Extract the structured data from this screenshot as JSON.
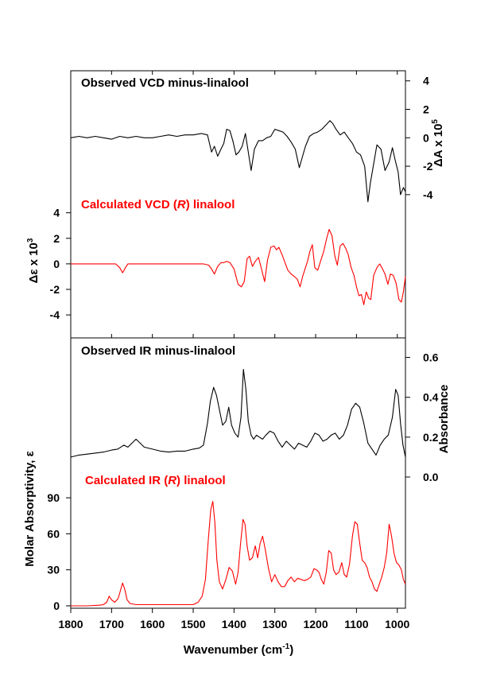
{
  "chart_data": [
    {
      "type": "line",
      "panel": "observed-vcd",
      "title": "Observed VCD minus-linalool",
      "title_color": "#000000",
      "line_color": "#000000",
      "ylabel": "ΔA x 10",
      "ylabel_sup": "5",
      "yaxis_side": "right",
      "ylim": [
        -4.4,
        4.6
      ],
      "yticks": [
        4,
        2,
        0,
        -2,
        -4
      ],
      "x": [
        1800,
        1780,
        1760,
        1740,
        1720,
        1700,
        1680,
        1660,
        1640,
        1620,
        1600,
        1580,
        1560,
        1540,
        1520,
        1500,
        1480,
        1465,
        1455,
        1448,
        1440,
        1432,
        1425,
        1418,
        1410,
        1402,
        1395,
        1388,
        1380,
        1372,
        1365,
        1358,
        1350,
        1340,
        1330,
        1320,
        1310,
        1300,
        1290,
        1280,
        1270,
        1260,
        1250,
        1240,
        1232,
        1225,
        1215,
        1205,
        1195,
        1185,
        1175,
        1165,
        1158,
        1150,
        1140,
        1130,
        1120,
        1110,
        1100,
        1090,
        1080,
        1072,
        1066,
        1060,
        1050,
        1040,
        1030,
        1020,
        1012,
        1005,
        998,
        992,
        985,
        980
      ],
      "values": [
        0.0,
        0.1,
        0.0,
        0.1,
        0.0,
        -0.1,
        0.1,
        0.0,
        0.1,
        0.0,
        0.0,
        0.1,
        0.2,
        0.1,
        0.2,
        0.2,
        0.3,
        0.2,
        -1.0,
        -0.6,
        -1.3,
        -0.8,
        -0.4,
        0.6,
        0.5,
        -0.3,
        -1.2,
        -1.0,
        -0.6,
        0.3,
        -1.0,
        -2.3,
        -0.8,
        -0.2,
        -0.2,
        0.0,
        0.1,
        0.6,
        0.5,
        0.4,
        0.1,
        -0.3,
        -0.8,
        -2.1,
        -1.3,
        -0.6,
        0.1,
        0.3,
        0.4,
        0.6,
        0.9,
        1.2,
        1.0,
        0.6,
        0.2,
        0.4,
        0.0,
        -0.4,
        -1.0,
        -1.2,
        -2.0,
        -4.5,
        -3.2,
        -2.2,
        -0.5,
        -0.8,
        -2.3,
        -1.7,
        -0.7,
        -1.6,
        -2.4,
        -4.0,
        -3.5,
        -3.8
      ]
    },
    {
      "type": "line",
      "panel": "calculated-vcd",
      "title": "Calculated VCD (",
      "title_italic": "R",
      "title_end": ") linalool",
      "title_color": "#ff0000",
      "line_color": "#ff0000",
      "ylabel": "Δε x 10",
      "ylabel_sup": "3",
      "yaxis_side": "left",
      "ylim": [
        -5.8,
        4.6
      ],
      "yticks": [
        4,
        2,
        0,
        -2,
        -4
      ],
      "x": [
        1800,
        1700,
        1690,
        1680,
        1673,
        1666,
        1660,
        1640,
        1520,
        1475,
        1462,
        1455,
        1448,
        1440,
        1432,
        1425,
        1418,
        1410,
        1400,
        1390,
        1382,
        1375,
        1368,
        1362,
        1355,
        1348,
        1340,
        1332,
        1325,
        1318,
        1310,
        1302,
        1296,
        1290,
        1282,
        1275,
        1268,
        1260,
        1252,
        1245,
        1238,
        1232,
        1226,
        1220,
        1214,
        1208,
        1202,
        1195,
        1188,
        1180,
        1173,
        1167,
        1160,
        1153,
        1147,
        1140,
        1133,
        1126,
        1120,
        1113,
        1106,
        1100,
        1094,
        1088,
        1082,
        1076,
        1070,
        1065,
        1058,
        1050,
        1043,
        1036,
        1030,
        1023,
        1017,
        1010,
        1003,
        996,
        990,
        985,
        980
      ],
      "values": [
        0.0,
        0.0,
        0.0,
        -0.3,
        -0.7,
        -0.3,
        0.0,
        0.0,
        0.0,
        0.0,
        -0.1,
        -0.4,
        -0.8,
        -0.2,
        0.1,
        0.1,
        0.2,
        0.1,
        -0.4,
        -1.6,
        -1.8,
        -1.4,
        0.4,
        0.6,
        -0.2,
        0.2,
        0.5,
        -0.5,
        -1.4,
        0.3,
        1.3,
        1.4,
        1.1,
        1.3,
        0.7,
        0.1,
        -0.5,
        -0.8,
        -1.0,
        -1.2,
        -1.8,
        -1.0,
        -0.4,
        0.2,
        1.0,
        1.5,
        -0.3,
        -0.5,
        0.2,
        1.0,
        2.0,
        2.7,
        2.2,
        0.6,
        -0.1,
        1.4,
        1.6,
        1.2,
        0.7,
        -0.3,
        -0.9,
        -1.8,
        -2.5,
        -2.4,
        -3.2,
        -2.2,
        -2.7,
        -2.8,
        -0.9,
        -0.3,
        0.0,
        -0.4,
        -0.8,
        -1.6,
        -0.8,
        -0.9,
        -1.5,
        -2.8,
        -3.0,
        -2.2,
        -1.0
      ]
    },
    {
      "type": "line",
      "panel": "observed-ir",
      "title": "Observed IR minus-linalool",
      "title_color": "#000000",
      "line_color": "#000000",
      "ylabel": "Absorbance",
      "yaxis_side": "right",
      "ylim": [
        -0.02,
        0.69
      ],
      "yticks": [
        0.6,
        0.4,
        0.2,
        0.0
      ],
      "yticklabels": [
        "0.6",
        "0.4",
        "0.2",
        "0.0"
      ],
      "x": [
        1800,
        1780,
        1760,
        1740,
        1720,
        1700,
        1685,
        1670,
        1660,
        1650,
        1640,
        1630,
        1620,
        1600,
        1580,
        1560,
        1540,
        1520,
        1500,
        1485,
        1475,
        1465,
        1458,
        1450,
        1443,
        1435,
        1428,
        1420,
        1413,
        1406,
        1398,
        1390,
        1383,
        1377,
        1371,
        1365,
        1358,
        1352,
        1345,
        1338,
        1330,
        1322,
        1312,
        1302,
        1292,
        1282,
        1272,
        1262,
        1252,
        1242,
        1232,
        1222,
        1212,
        1202,
        1192,
        1182,
        1172,
        1162,
        1152,
        1142,
        1132,
        1122,
        1112,
        1102,
        1092,
        1082,
        1072,
        1062,
        1052,
        1042,
        1032,
        1022,
        1012,
        1004,
        998,
        992,
        986,
        980
      ],
      "values": [
        0.1,
        0.11,
        0.115,
        0.12,
        0.125,
        0.135,
        0.14,
        0.16,
        0.15,
        0.17,
        0.19,
        0.17,
        0.15,
        0.14,
        0.13,
        0.125,
        0.13,
        0.13,
        0.14,
        0.145,
        0.16,
        0.27,
        0.38,
        0.45,
        0.41,
        0.33,
        0.26,
        0.28,
        0.35,
        0.26,
        0.22,
        0.2,
        0.3,
        0.54,
        0.44,
        0.28,
        0.21,
        0.19,
        0.21,
        0.2,
        0.19,
        0.21,
        0.23,
        0.22,
        0.18,
        0.15,
        0.18,
        0.16,
        0.14,
        0.17,
        0.16,
        0.15,
        0.18,
        0.22,
        0.21,
        0.18,
        0.19,
        0.21,
        0.22,
        0.19,
        0.21,
        0.26,
        0.34,
        0.37,
        0.35,
        0.27,
        0.17,
        0.14,
        0.11,
        0.16,
        0.19,
        0.21,
        0.3,
        0.44,
        0.41,
        0.27,
        0.16,
        0.1
      ]
    },
    {
      "type": "line",
      "panel": "calculated-ir",
      "title": "Calculated IR (",
      "title_italic": "R",
      "title_end": ") linalool",
      "title_color": "#ff0000",
      "line_color": "#ff0000",
      "ylabel": "Molar Absorptivity, ε",
      "yaxis_side": "left",
      "ylim": [
        -2,
        102
      ],
      "yticks": [
        90,
        60,
        30,
        0
      ],
      "yticklabels": [
        "90",
        "60",
        "30",
        "0"
      ],
      "x": [
        1800,
        1760,
        1730,
        1720,
        1712,
        1706,
        1700,
        1692,
        1684,
        1678,
        1673,
        1668,
        1662,
        1655,
        1640,
        1600,
        1560,
        1520,
        1500,
        1488,
        1478,
        1470,
        1463,
        1457,
        1452,
        1447,
        1442,
        1436,
        1428,
        1420,
        1412,
        1404,
        1396,
        1390,
        1384,
        1378,
        1373,
        1368,
        1362,
        1355,
        1348,
        1342,
        1336,
        1330,
        1324,
        1316,
        1308,
        1300,
        1292,
        1284,
        1276,
        1268,
        1260,
        1252,
        1244,
        1236,
        1228,
        1220,
        1212,
        1204,
        1198,
        1192,
        1186,
        1180,
        1174,
        1168,
        1162,
        1156,
        1150,
        1143,
        1136,
        1130,
        1124,
        1117,
        1110,
        1104,
        1098,
        1092,
        1086,
        1080,
        1074,
        1068,
        1062,
        1056,
        1050,
        1044,
        1038,
        1032,
        1026,
        1020,
        1014,
        1008,
        1002,
        996,
        990,
        985,
        980
      ],
      "values": [
        0,
        0,
        0.5,
        1,
        3,
        8,
        5,
        3,
        6,
        13,
        19,
        14,
        5,
        2,
        1,
        1,
        1,
        1,
        1,
        3,
        8,
        22,
        55,
        80,
        87,
        70,
        38,
        20,
        14,
        22,
        32,
        29,
        18,
        28,
        52,
        72,
        68,
        50,
        38,
        40,
        50,
        40,
        52,
        58,
        48,
        32,
        20,
        26,
        20,
        16,
        16,
        21,
        24,
        20,
        23,
        22,
        21,
        22,
        24,
        31,
        30,
        28,
        22,
        18,
        28,
        46,
        44,
        30,
        26,
        28,
        36,
        26,
        24,
        35,
        58,
        70,
        68,
        52,
        38,
        36,
        32,
        24,
        20,
        14,
        12,
        18,
        24,
        32,
        44,
        68,
        58,
        44,
        36,
        34,
        30,
        22,
        18
      ]
    }
  ],
  "x_axis": {
    "label": "Wavenumber (cm",
    "label_sup": "-1",
    "label_end": ")",
    "ticks": [
      1800,
      1700,
      1600,
      1500,
      1400,
      1300,
      1200,
      1100,
      1000
    ],
    "xlim": [
      1800,
      980
    ],
    "reversed": true
  },
  "colors": {
    "observed": "#000000",
    "calculated": "#ff0000",
    "axis": "#000000"
  }
}
